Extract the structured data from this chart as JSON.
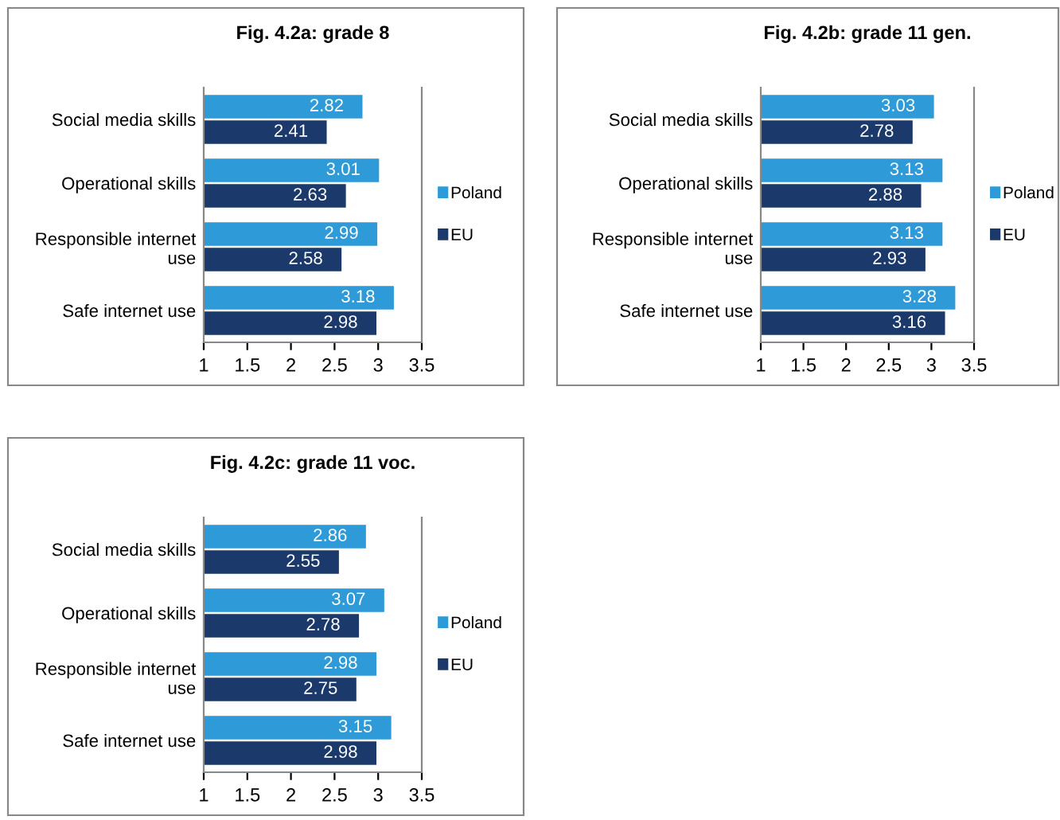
{
  "chart_data": [
    {
      "type": "bar",
      "orientation": "horizontal",
      "title": "Fig. 4.2a: grade 8",
      "categories": [
        "Social media skills",
        "Operational skills",
        "Responsible internet\nuse",
        "Safe internet use"
      ],
      "series": [
        {
          "name": "Poland",
          "color": "#2e9ad8",
          "values": [
            2.82,
            3.01,
            2.99,
            3.18
          ]
        },
        {
          "name": "EU",
          "color": "#1b3a6b",
          "values": [
            2.41,
            2.63,
            2.58,
            2.98
          ]
        }
      ],
      "xlim": [
        1,
        3.5
      ],
      "xticks": [
        1,
        1.5,
        2,
        2.5,
        3,
        3.5
      ],
      "data_labels": true,
      "legend": "right",
      "grid": false
    },
    {
      "type": "bar",
      "orientation": "horizontal",
      "title": "Fig. 4.2b: grade 11 gen.",
      "categories": [
        "Social media skills",
        "Operational skills",
        "Responsible internet\nuse",
        "Safe internet use"
      ],
      "series": [
        {
          "name": "Poland",
          "color": "#2e9ad8",
          "values": [
            3.03,
            3.13,
            3.13,
            3.28
          ]
        },
        {
          "name": "EU",
          "color": "#1b3a6b",
          "values": [
            2.78,
            2.88,
            2.93,
            3.16
          ]
        }
      ],
      "xlim": [
        1,
        3.5
      ],
      "xticks": [
        1,
        1.5,
        2,
        2.5,
        3,
        3.5
      ],
      "data_labels": true,
      "legend": "right",
      "grid": false
    },
    {
      "type": "bar",
      "orientation": "horizontal",
      "title": "Fig. 4.2c: grade 11 voc.",
      "categories": [
        "Social media skills",
        "Operational skills",
        "Responsible internet\nuse",
        "Safe internet use"
      ],
      "series": [
        {
          "name": "Poland",
          "color": "#2e9ad8",
          "values": [
            2.86,
            3.07,
            2.98,
            3.15
          ]
        },
        {
          "name": "EU",
          "color": "#1b3a6b",
          "values": [
            2.55,
            2.78,
            2.75,
            2.98
          ]
        }
      ],
      "xlim": [
        1,
        3.5
      ],
      "xticks": [
        1,
        1.5,
        2,
        2.5,
        3,
        3.5
      ],
      "data_labels": true,
      "legend": "right",
      "grid": false
    }
  ]
}
